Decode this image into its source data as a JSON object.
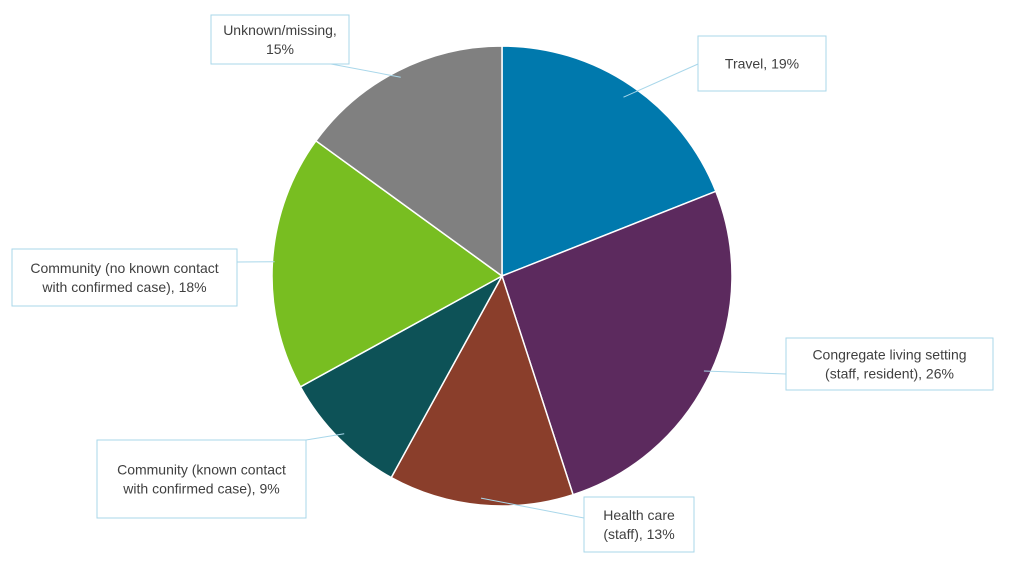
{
  "chart_data": {
    "type": "pie",
    "title": "",
    "start_angle_deg": 0,
    "direction": "clockwise",
    "slices": [
      {
        "label": "Travel, 19%",
        "lines": [
          "Travel, 19%"
        ],
        "value": 19,
        "color": "#0079AD"
      },
      {
        "label": "Congregate living setting (staff, resident), 26%",
        "lines": [
          "Congregate living setting",
          "(staff, resident), 26%"
        ],
        "value": 26,
        "color": "#5C2A5E"
      },
      {
        "label": "Health care (staff), 13%",
        "lines": [
          "Health care",
          "(staff), 13%"
        ],
        "value": 13,
        "color": "#8A3E2B"
      },
      {
        "label": "Community (known contact with confirmed case), 9%",
        "lines": [
          "Community (known contact",
          "with confirmed case), 9%"
        ],
        "value": 9,
        "color": "#0D5257"
      },
      {
        "label": "Community (no known contact with confirmed case), 18%",
        "lines": [
          "Community (no known contact",
          "with confirmed case), 18%"
        ],
        "value": 18,
        "color": "#78BE21"
      },
      {
        "label": "Unknown/missing, 15%",
        "lines": [
          "Unknown/missing,",
          "15%"
        ],
        "value": 15,
        "color": "#808080"
      }
    ]
  }
}
